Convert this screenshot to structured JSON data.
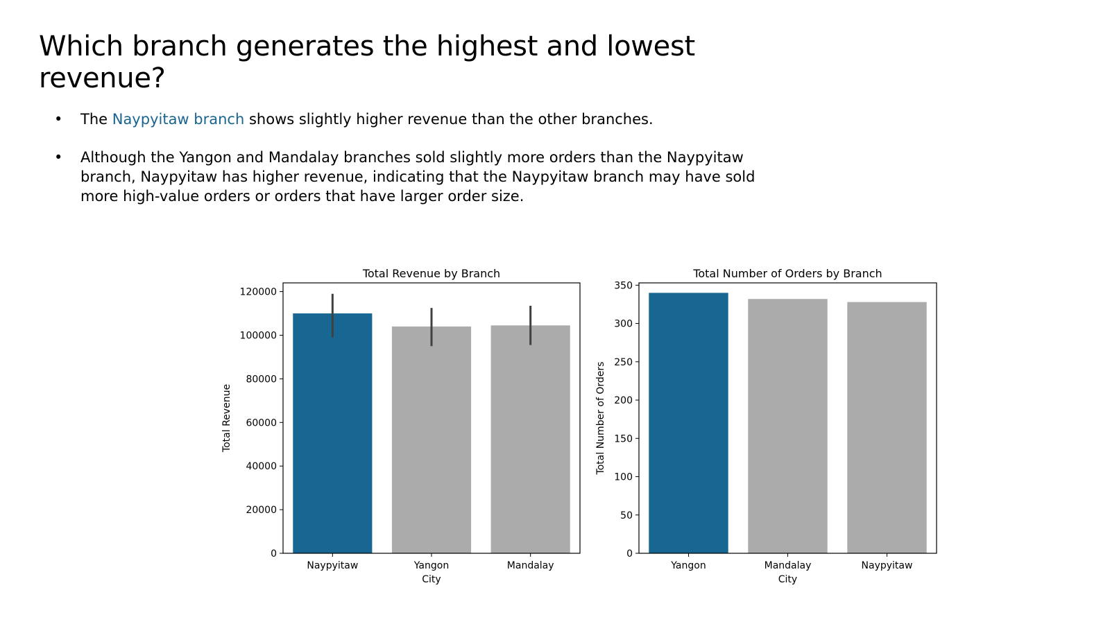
{
  "slide": {
    "title": "Which branch generates the highest and lowest revenue?",
    "bullets": [
      {
        "prefix": "The ",
        "highlight": "Naypyitaw branch",
        "suffix": " shows slightly higher revenue than the other branches."
      },
      {
        "prefix": "Although the Yangon and Mandalay branches sold slightly more orders than the Naypyitaw branch, Naypyitaw has higher revenue, indicating that the Naypyitaw branch may have sold more high-value orders or orders that have larger order size.",
        "highlight": "",
        "suffix": ""
      }
    ],
    "bullet_symbol": "•",
    "highlight_color": "#1a6590"
  },
  "chart_data": [
    {
      "type": "bar",
      "title": "Total Revenue by Branch",
      "xlabel": "City",
      "ylabel": "Total Revenue",
      "categories": [
        "Naypyitaw",
        "Yangon",
        "Mandalay"
      ],
      "values": [
        110000,
        104000,
        104500
      ],
      "error_low": [
        99000,
        95000,
        95500
      ],
      "error_high": [
        119000,
        112500,
        113500
      ],
      "ylim": [
        0,
        124000
      ],
      "yticks": [
        0,
        20000,
        40000,
        60000,
        80000,
        100000,
        120000
      ],
      "colors": [
        "#186793",
        "#ababab",
        "#ababab"
      ],
      "grid": false
    },
    {
      "type": "bar",
      "title": "Total Number of Orders by Branch",
      "xlabel": "City",
      "ylabel": "Total Number of Orders",
      "categories": [
        "Yangon",
        "Mandalay",
        "Naypyitaw"
      ],
      "values": [
        340,
        332,
        328
      ],
      "ylim": [
        0,
        353
      ],
      "yticks": [
        0,
        50,
        100,
        150,
        200,
        250,
        300,
        350
      ],
      "colors": [
        "#186793",
        "#ababab",
        "#ababab"
      ],
      "grid": false
    }
  ]
}
